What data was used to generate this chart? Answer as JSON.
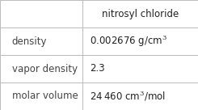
{
  "col_header": "nitrosyl chloride",
  "rows": [
    {
      "label": "density",
      "value": "0.002676 g/cm$^{3}$"
    },
    {
      "label": "vapor density",
      "value": "2.3"
    },
    {
      "label": "molar volume",
      "value": "24 460 cm$^{3}$/mol"
    }
  ],
  "bg_color": "#ffffff",
  "border_color": "#bbbbbb",
  "text_color": "#222222",
  "label_color": "#444444",
  "font_size": 8.5,
  "header_font_size": 8.5,
  "col_split": 0.415
}
